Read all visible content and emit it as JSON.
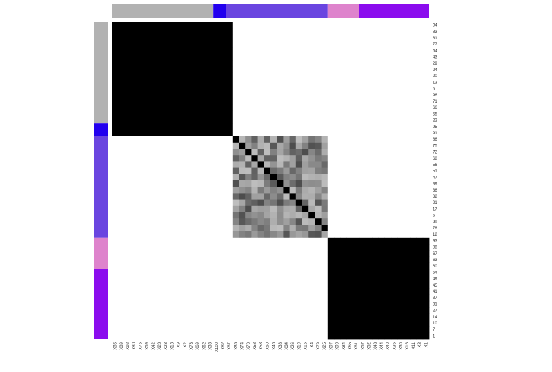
{
  "chart_data": {
    "type": "heatmap",
    "title": "",
    "row_labels": [
      "94",
      "83",
      "81",
      "77",
      "64",
      "43",
      "29",
      "24",
      "20",
      "13",
      "5",
      "96",
      "71",
      "66",
      "55",
      "22",
      "95",
      "91",
      "86",
      "75",
      "72",
      "68",
      "56",
      "51",
      "47",
      "39",
      "36",
      "32",
      "21",
      "17",
      "6",
      "99",
      "78",
      "12",
      "93",
      "88",
      "67",
      "63",
      "60",
      "54",
      "49",
      "45",
      "41",
      "37",
      "31",
      "27",
      "14",
      "10",
      "7",
      "1"
    ],
    "column_labels": [
      "X86",
      "X89",
      "X92",
      "X80",
      "X75",
      "X59",
      "X42",
      "X28",
      "X23",
      "X18",
      "X9",
      "X2",
      "X73",
      "X69",
      "X62",
      "X33",
      "X100",
      "X82",
      "X67",
      "X85",
      "X74",
      "X70",
      "X58",
      "X53",
      "X50",
      "X46",
      "X38",
      "X34",
      "X26",
      "X19",
      "X15",
      "X4",
      "X79",
      "X25",
      "X97",
      "X90",
      "X84",
      "X65",
      "X61",
      "X57",
      "X52",
      "X48",
      "X44",
      "X40",
      "X35",
      "X30",
      "X16",
      "X11",
      "X8",
      "X1"
    ],
    "groups": [
      {
        "start": 0,
        "end": 16,
        "color": "#b2b2b2"
      },
      {
        "start": 16,
        "end": 18,
        "color": "#2200ee"
      },
      {
        "start": 18,
        "end": 34,
        "color": "#6a45e0"
      },
      {
        "start": 34,
        "end": 39,
        "color": "#de83cc"
      },
      {
        "start": 39,
        "end": 50,
        "color": "#8b0cee"
      }
    ],
    "blocks": [
      {
        "rows": [
          0,
          18
        ],
        "cols": [
          0,
          19
        ],
        "value": 1.0
      },
      {
        "rows": [
          18,
          34
        ],
        "cols": [
          19,
          34
        ],
        "value_range": [
          0.25,
          0.7
        ],
        "diagonal": 1.0
      },
      {
        "rows": [
          34,
          50
        ],
        "cols": [
          34,
          50
        ],
        "value": 1.0
      }
    ],
    "background_value": 0.0,
    "colors": {
      "high": "#000000",
      "low": "#ffffff"
    },
    "legend": "none"
  }
}
